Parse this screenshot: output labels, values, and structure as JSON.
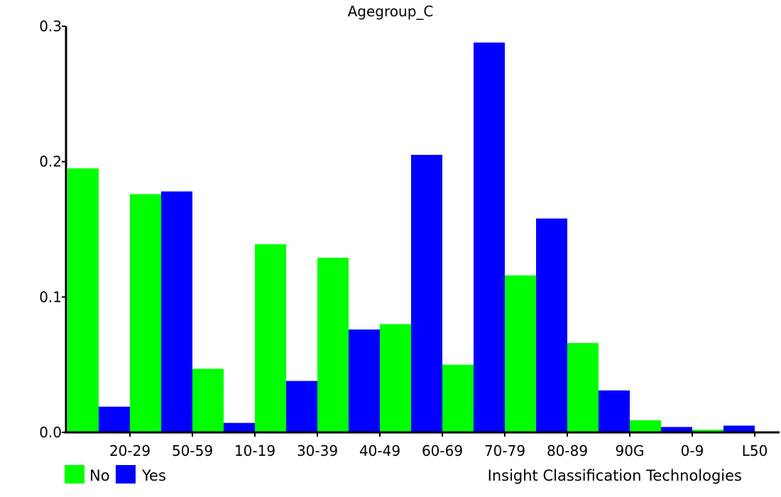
{
  "chart_data": {
    "type": "bar",
    "title": "Agegroup_C",
    "xlabel": "",
    "ylabel": "",
    "categories": [
      "20-29",
      "50-59",
      "10-19",
      "30-39",
      "40-49",
      "60-69",
      "70-79",
      "80-89",
      "90G",
      "0-9",
      "L50"
    ],
    "series": [
      {
        "name": "No",
        "color": "#00ff00",
        "values": [
          0.195,
          0.176,
          0.047,
          0.139,
          0.129,
          0.08,
          0.05,
          0.116,
          0.066,
          0.009,
          0.002
        ]
      },
      {
        "name": "Yes",
        "color": "#0000ff",
        "values": [
          0.019,
          0.178,
          0.007,
          0.038,
          0.076,
          0.205,
          0.288,
          0.158,
          0.031,
          0.004,
          0.005
        ]
      }
    ],
    "ylim": [
      0,
      0.3
    ],
    "yticks": [
      0.0,
      0.1,
      0.2,
      0.3
    ],
    "ytick_labels": [
      "0.0",
      "0.1",
      "0.2",
      "0.3"
    ],
    "grid": false,
    "legend_position": "bottom-left"
  },
  "credit": "Insight Classification Technologies"
}
